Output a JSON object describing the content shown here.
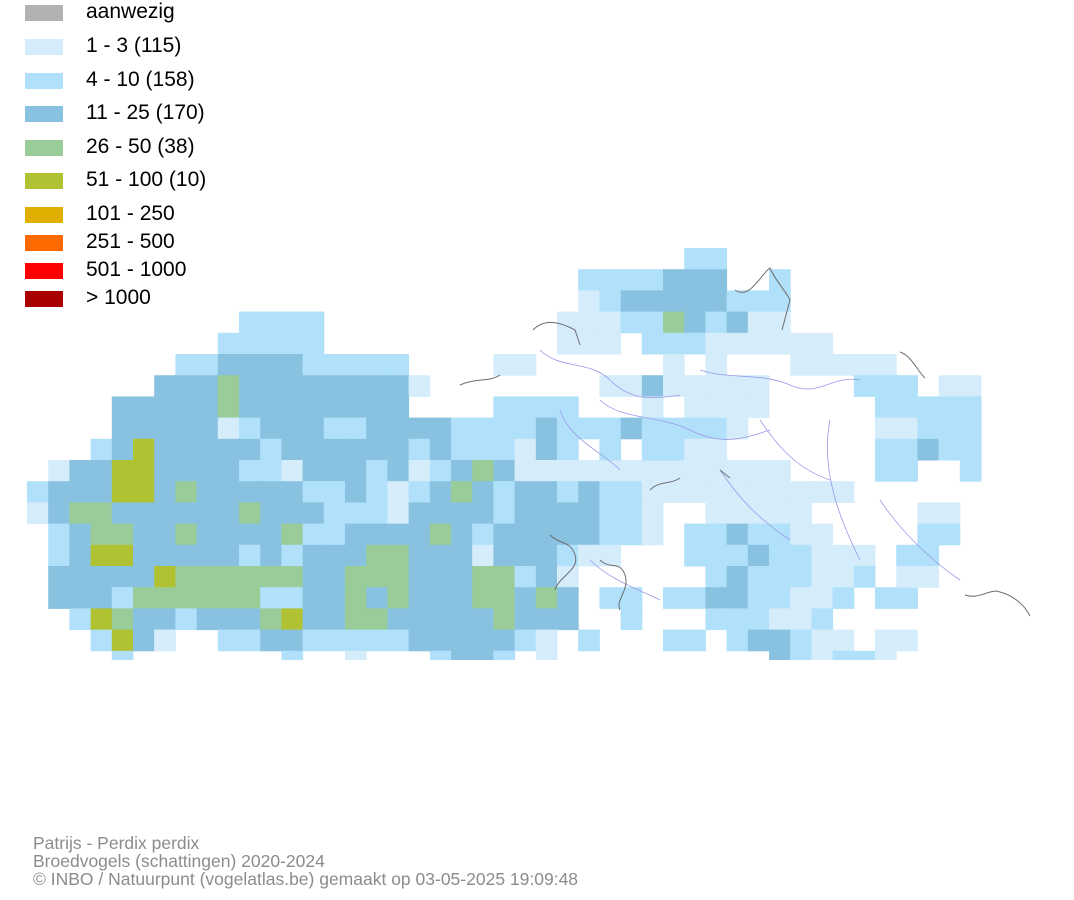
{
  "legend": {
    "items": [
      {
        "label": "aanwezig",
        "color": "#b2b2b2"
      },
      {
        "label": "1 - 3 (115)",
        "color": "#d5ecfb"
      },
      {
        "label": "4 - 10 (158)",
        "color": "#b1e1fa"
      },
      {
        "label": "11 - 25 (170)",
        "color": "#88c2e0"
      },
      {
        "label": "26 - 50 (38)",
        "color": "#99cc99"
      },
      {
        "label": "51 - 100 (10)",
        "color": "#b0c232"
      },
      {
        "label": "101 - 250",
        "color": "#e0b000"
      },
      {
        "label": "251 - 500",
        "color": "#ff6a00"
      },
      {
        "label": "501 - 1000",
        "color": "#ff0000"
      },
      {
        "label": "> 1000",
        "color": "#a80000"
      }
    ]
  },
  "map": {
    "border_color": "#6e6e6e",
    "river_color": "#9a9ae8"
  },
  "footer": {
    "species": "Patrijs - Perdix perdix",
    "dataset": "Broedvogels (schattingen) 2020-2024",
    "credit": "© INBO / Natuurpunt (vogelatlas.be) gemaakt op 03-05-2025 19:09:48"
  }
}
